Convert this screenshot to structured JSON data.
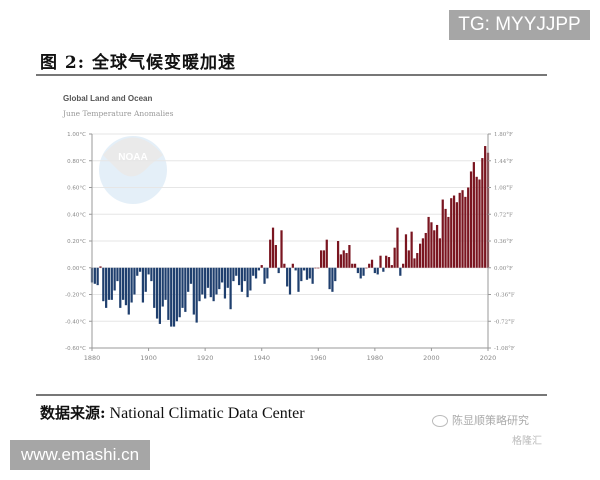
{
  "watermark_top": "TG: MYYJJPP",
  "figure_title": "图 2:  全球气候变暖加速",
  "source": {
    "label": "数据来源:",
    "text": " National Climatic Data Center"
  },
  "wechat_brand": "陈显顺策略研究",
  "gehui_brand": "格隆汇",
  "watermark_bottom": "www.emashi.cn",
  "logo_text": "NOAA",
  "colors": {
    "positive": "#7a1520",
    "negative": "#1f3f6e",
    "grid": "#e6e6e6",
    "axis": "#999999"
  },
  "chart_data": {
    "type": "bar",
    "title": "Global Land and Ocean",
    "subtitle": "June Temperature Anomalies",
    "xlabel": "",
    "ylabel": "",
    "x_start": 1880,
    "x_end": 2020,
    "xticks": [
      "1880",
      "1900",
      "1920",
      "1940",
      "1960",
      "1980",
      "2000",
      "2020"
    ],
    "yticks_left": [
      "1.00°C",
      "0.80°C",
      "0.60°C",
      "0.40°C",
      "0.20°C",
      "0.00°C",
      "-0.20°C",
      "-0.40°C",
      "-0.60°C"
    ],
    "yticks_right": [
      "1.80°F",
      "1.44°F",
      "1.08°F",
      "0.72°F",
      "0.36°F",
      "0.00°F",
      "-0.36°F",
      "-0.72°F",
      "-1.08°F"
    ],
    "ylim": [
      -0.6,
      1.0
    ],
    "grid": true,
    "legend": null,
    "values": [
      -0.11,
      -0.12,
      -0.13,
      0.01,
      -0.25,
      -0.3,
      -0.24,
      -0.24,
      -0.17,
      -0.1,
      -0.3,
      -0.24,
      -0.28,
      -0.35,
      -0.26,
      -0.2,
      -0.06,
      -0.03,
      -0.26,
      -0.18,
      -0.05,
      -0.1,
      -0.3,
      -0.38,
      -0.42,
      -0.29,
      -0.24,
      -0.39,
      -0.44,
      -0.44,
      -0.4,
      -0.37,
      -0.3,
      -0.33,
      -0.18,
      -0.12,
      -0.35,
      -0.41,
      -0.25,
      -0.2,
      -0.23,
      -0.15,
      -0.22,
      -0.25,
      -0.2,
      -0.16,
      -0.11,
      -0.23,
      -0.15,
      -0.31,
      -0.1,
      -0.06,
      -0.13,
      -0.18,
      -0.1,
      -0.22,
      -0.17,
      -0.06,
      -0.08,
      -0.02,
      0.02,
      -0.12,
      -0.08,
      0.21,
      0.3,
      0.17,
      -0.04,
      0.28,
      0.03,
      -0.14,
      -0.2,
      0.03,
      -0.02,
      -0.18,
      -0.1,
      -0.02,
      -0.09,
      -0.08,
      -0.12,
      0.0,
      0.0,
      0.13,
      0.13,
      0.21,
      -0.16,
      -0.18,
      -0.1,
      0.2,
      0.1,
      0.13,
      0.11,
      0.17,
      0.03,
      0.03,
      -0.04,
      -0.08,
      -0.06,
      0.0,
      0.03,
      0.06,
      -0.04,
      -0.05,
      0.09,
      -0.03,
      0.09,
      0.08,
      0.02,
      0.15,
      0.3,
      -0.06,
      0.03,
      0.25,
      0.13,
      0.27,
      0.07,
      0.11,
      0.18,
      0.22,
      0.26,
      0.38,
      0.34,
      0.28,
      0.32,
      0.22,
      0.51,
      0.44,
      0.38,
      0.52,
      0.54,
      0.49,
      0.56,
      0.58,
      0.53,
      0.6,
      0.72,
      0.79,
      0.68,
      0.66,
      0.82,
      0.91,
      0.86
    ]
  }
}
